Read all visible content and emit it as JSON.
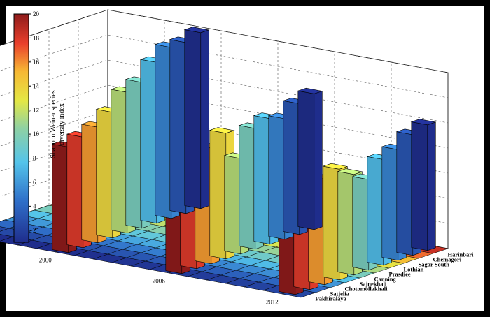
{
  "chart_data": {
    "type": "bar3d",
    "zlim": [
      0,
      3.5
    ],
    "z_ticks": [
      "0",
      "0.5",
      "1",
      "1.5",
      "2",
      "2.5",
      "3",
      "3.5"
    ],
    "x_ticks": [
      "2000",
      "2006",
      "2012"
    ],
    "categories": [
      "Pakhirałaya",
      "Satjelia",
      "Chotomollakhali",
      "Sajnekhali",
      "Canning",
      "Prasdiee",
      "Lothian",
      "Sagar South",
      "Chemagori",
      "Harinbari"
    ],
    "colorbar": {
      "label_line1": "Shannon Weiner species",
      "label_line2": "diversity index",
      "ticks": [
        "2",
        "4",
        "6",
        "8",
        "10",
        "12",
        "14",
        "16",
        "18",
        "20"
      ],
      "range": [
        1,
        20
      ]
    },
    "series": [
      {
        "name": "2000",
        "values": [
          2.1,
          2.2,
          2.3,
          2.5,
          2.8,
          2.9,
          3.2,
          3.4,
          3.4,
          3.5
        ]
      },
      {
        "name": "2006",
        "values": [
          2.1,
          2.2,
          2.3,
          2.5,
          1.9,
          2.4,
          2.5,
          2.4,
          2.6,
          2.7
        ]
      },
      {
        "name": "2012",
        "values": [
          1.9,
          2.0,
          2.1,
          2.2,
          2.0,
          1.8,
          2.1,
          2.2,
          2.4,
          2.5
        ]
      }
    ],
    "grid": true
  }
}
